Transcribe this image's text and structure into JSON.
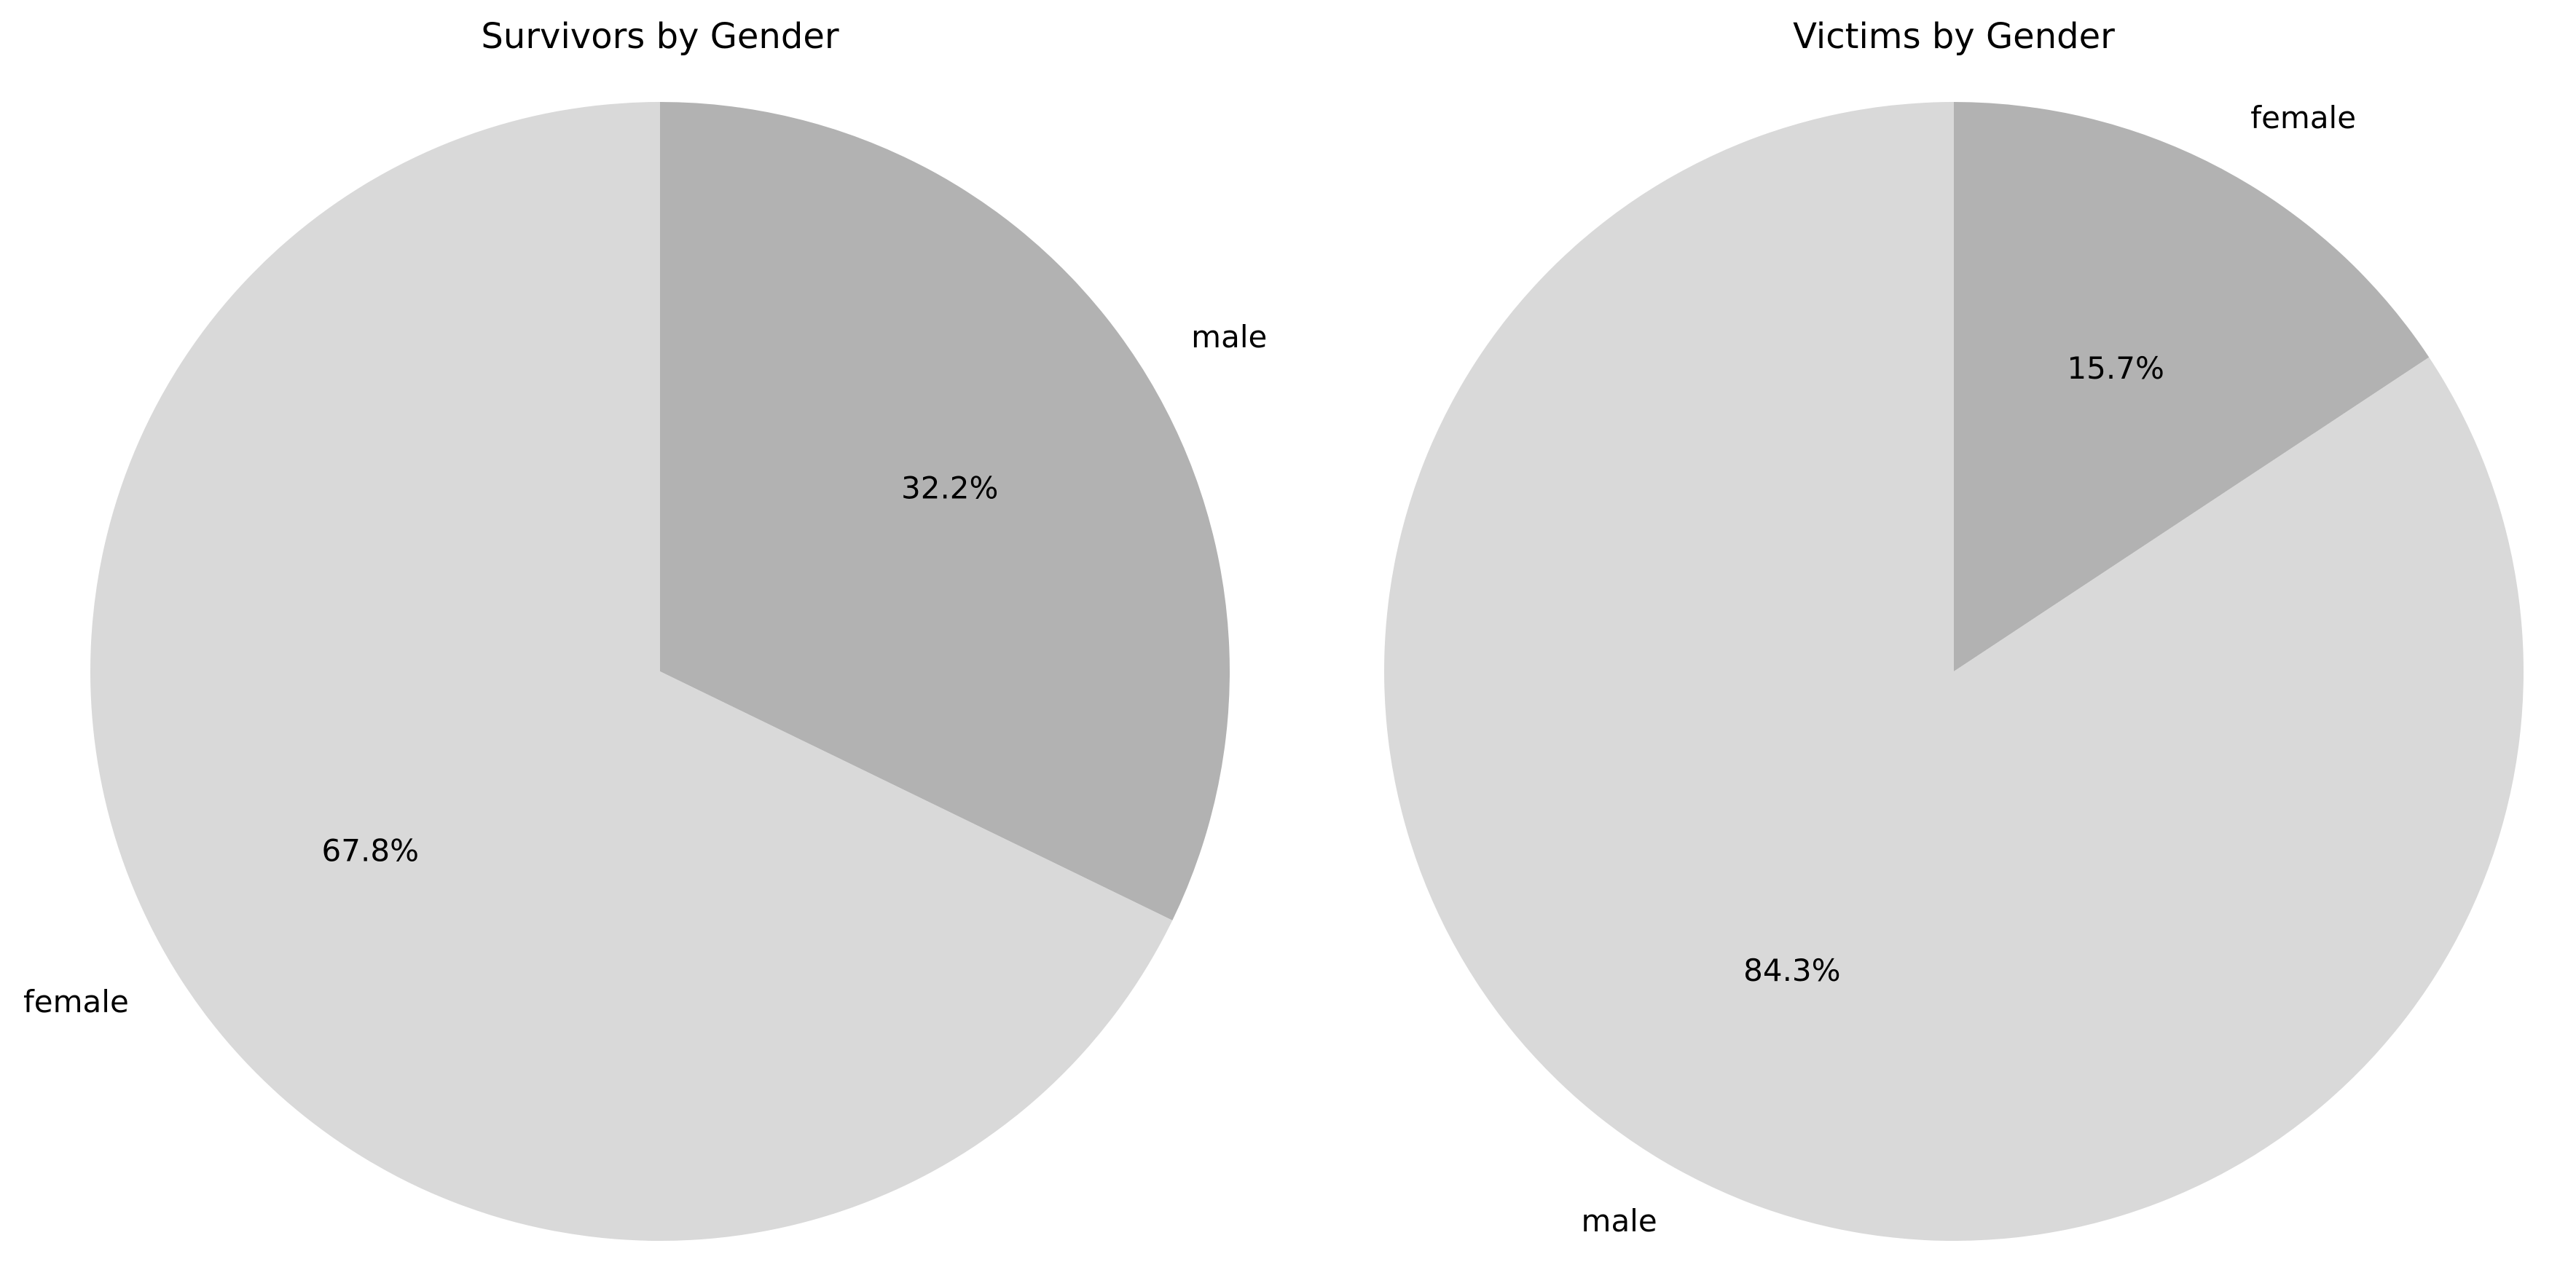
{
  "chart_data": [
    {
      "type": "pie",
      "title": "Survivors by Gender",
      "slices": [
        {
          "label": "male",
          "percent_label": "32.2%",
          "value": 32.2,
          "color": "#b2b2b2"
        },
        {
          "label": "female",
          "percent_label": "67.8%",
          "value": 67.8,
          "color": "#d9d9d9"
        }
      ],
      "start_angle_deg": 90,
      "direction": "clockwise"
    },
    {
      "type": "pie",
      "title": "Victims by Gender",
      "slices": [
        {
          "label": "female",
          "percent_label": "15.7%",
          "value": 15.7,
          "color": "#b2b2b2"
        },
        {
          "label": "male",
          "percent_label": "84.3%",
          "value": 84.3,
          "color": "#d9d9d9"
        }
      ],
      "start_angle_deg": 90,
      "direction": "clockwise"
    }
  ]
}
